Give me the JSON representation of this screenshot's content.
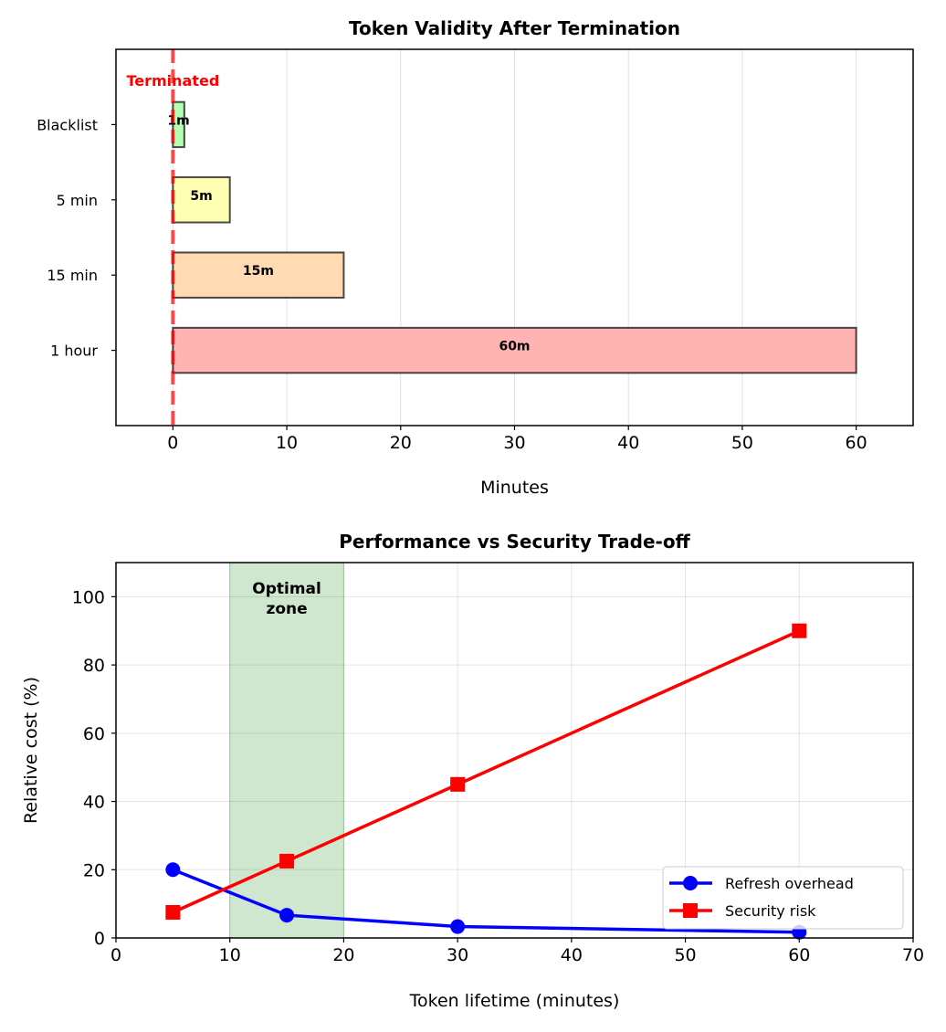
{
  "chart_data": [
    {
      "type": "bar",
      "orientation": "horizontal",
      "title": "Token Validity After Termination",
      "xlabel": "Minutes",
      "ylabel": "",
      "xlim": [
        -5,
        65
      ],
      "ylim": [
        -1,
        4
      ],
      "xticks": [
        0,
        10,
        20,
        30,
        40,
        50,
        60
      ],
      "grid": "x",
      "categories": [
        "1 hour",
        "15 min",
        "5 min",
        "Blacklist"
      ],
      "values": [
        60,
        15,
        5,
        1
      ],
      "bar_labels": [
        "60m",
        "15m",
        "5m",
        "1m"
      ],
      "colors": [
        "#ffb3b3",
        "#ffdab3",
        "#ffffb3",
        "#b3ffb3"
      ],
      "annotation": {
        "text": "Terminated",
        "x": 0,
        "y": 3.6,
        "color": "#ff0000"
      },
      "vline": {
        "x": 0,
        "color": "#ff0000",
        "style": "dashed"
      }
    },
    {
      "type": "line",
      "title": "Performance vs Security Trade-off",
      "xlabel": "Token lifetime (minutes)",
      "ylabel": "Relative cost (%)",
      "xlim": [
        0,
        70
      ],
      "ylim": [
        0,
        110
      ],
      "xticks": [
        0,
        10,
        20,
        30,
        40,
        50,
        60,
        70
      ],
      "yticks": [
        0,
        20,
        40,
        60,
        80,
        100
      ],
      "grid": "both",
      "legend": "lower-right",
      "x": [
        5,
        15,
        30,
        60
      ],
      "series": [
        {
          "name": "Refresh overhead",
          "values": [
            20,
            6.67,
            3.33,
            1.67
          ],
          "color": "#0000ff",
          "marker": "circle"
        },
        {
          "name": "Security risk",
          "values": [
            7.5,
            22.5,
            45,
            90
          ],
          "color": "#ff0000",
          "marker": "square"
        }
      ],
      "shaded_region": {
        "x": [
          10,
          20
        ],
        "color": "#008000",
        "label": [
          "Optimal",
          "zone"
        ]
      }
    }
  ]
}
